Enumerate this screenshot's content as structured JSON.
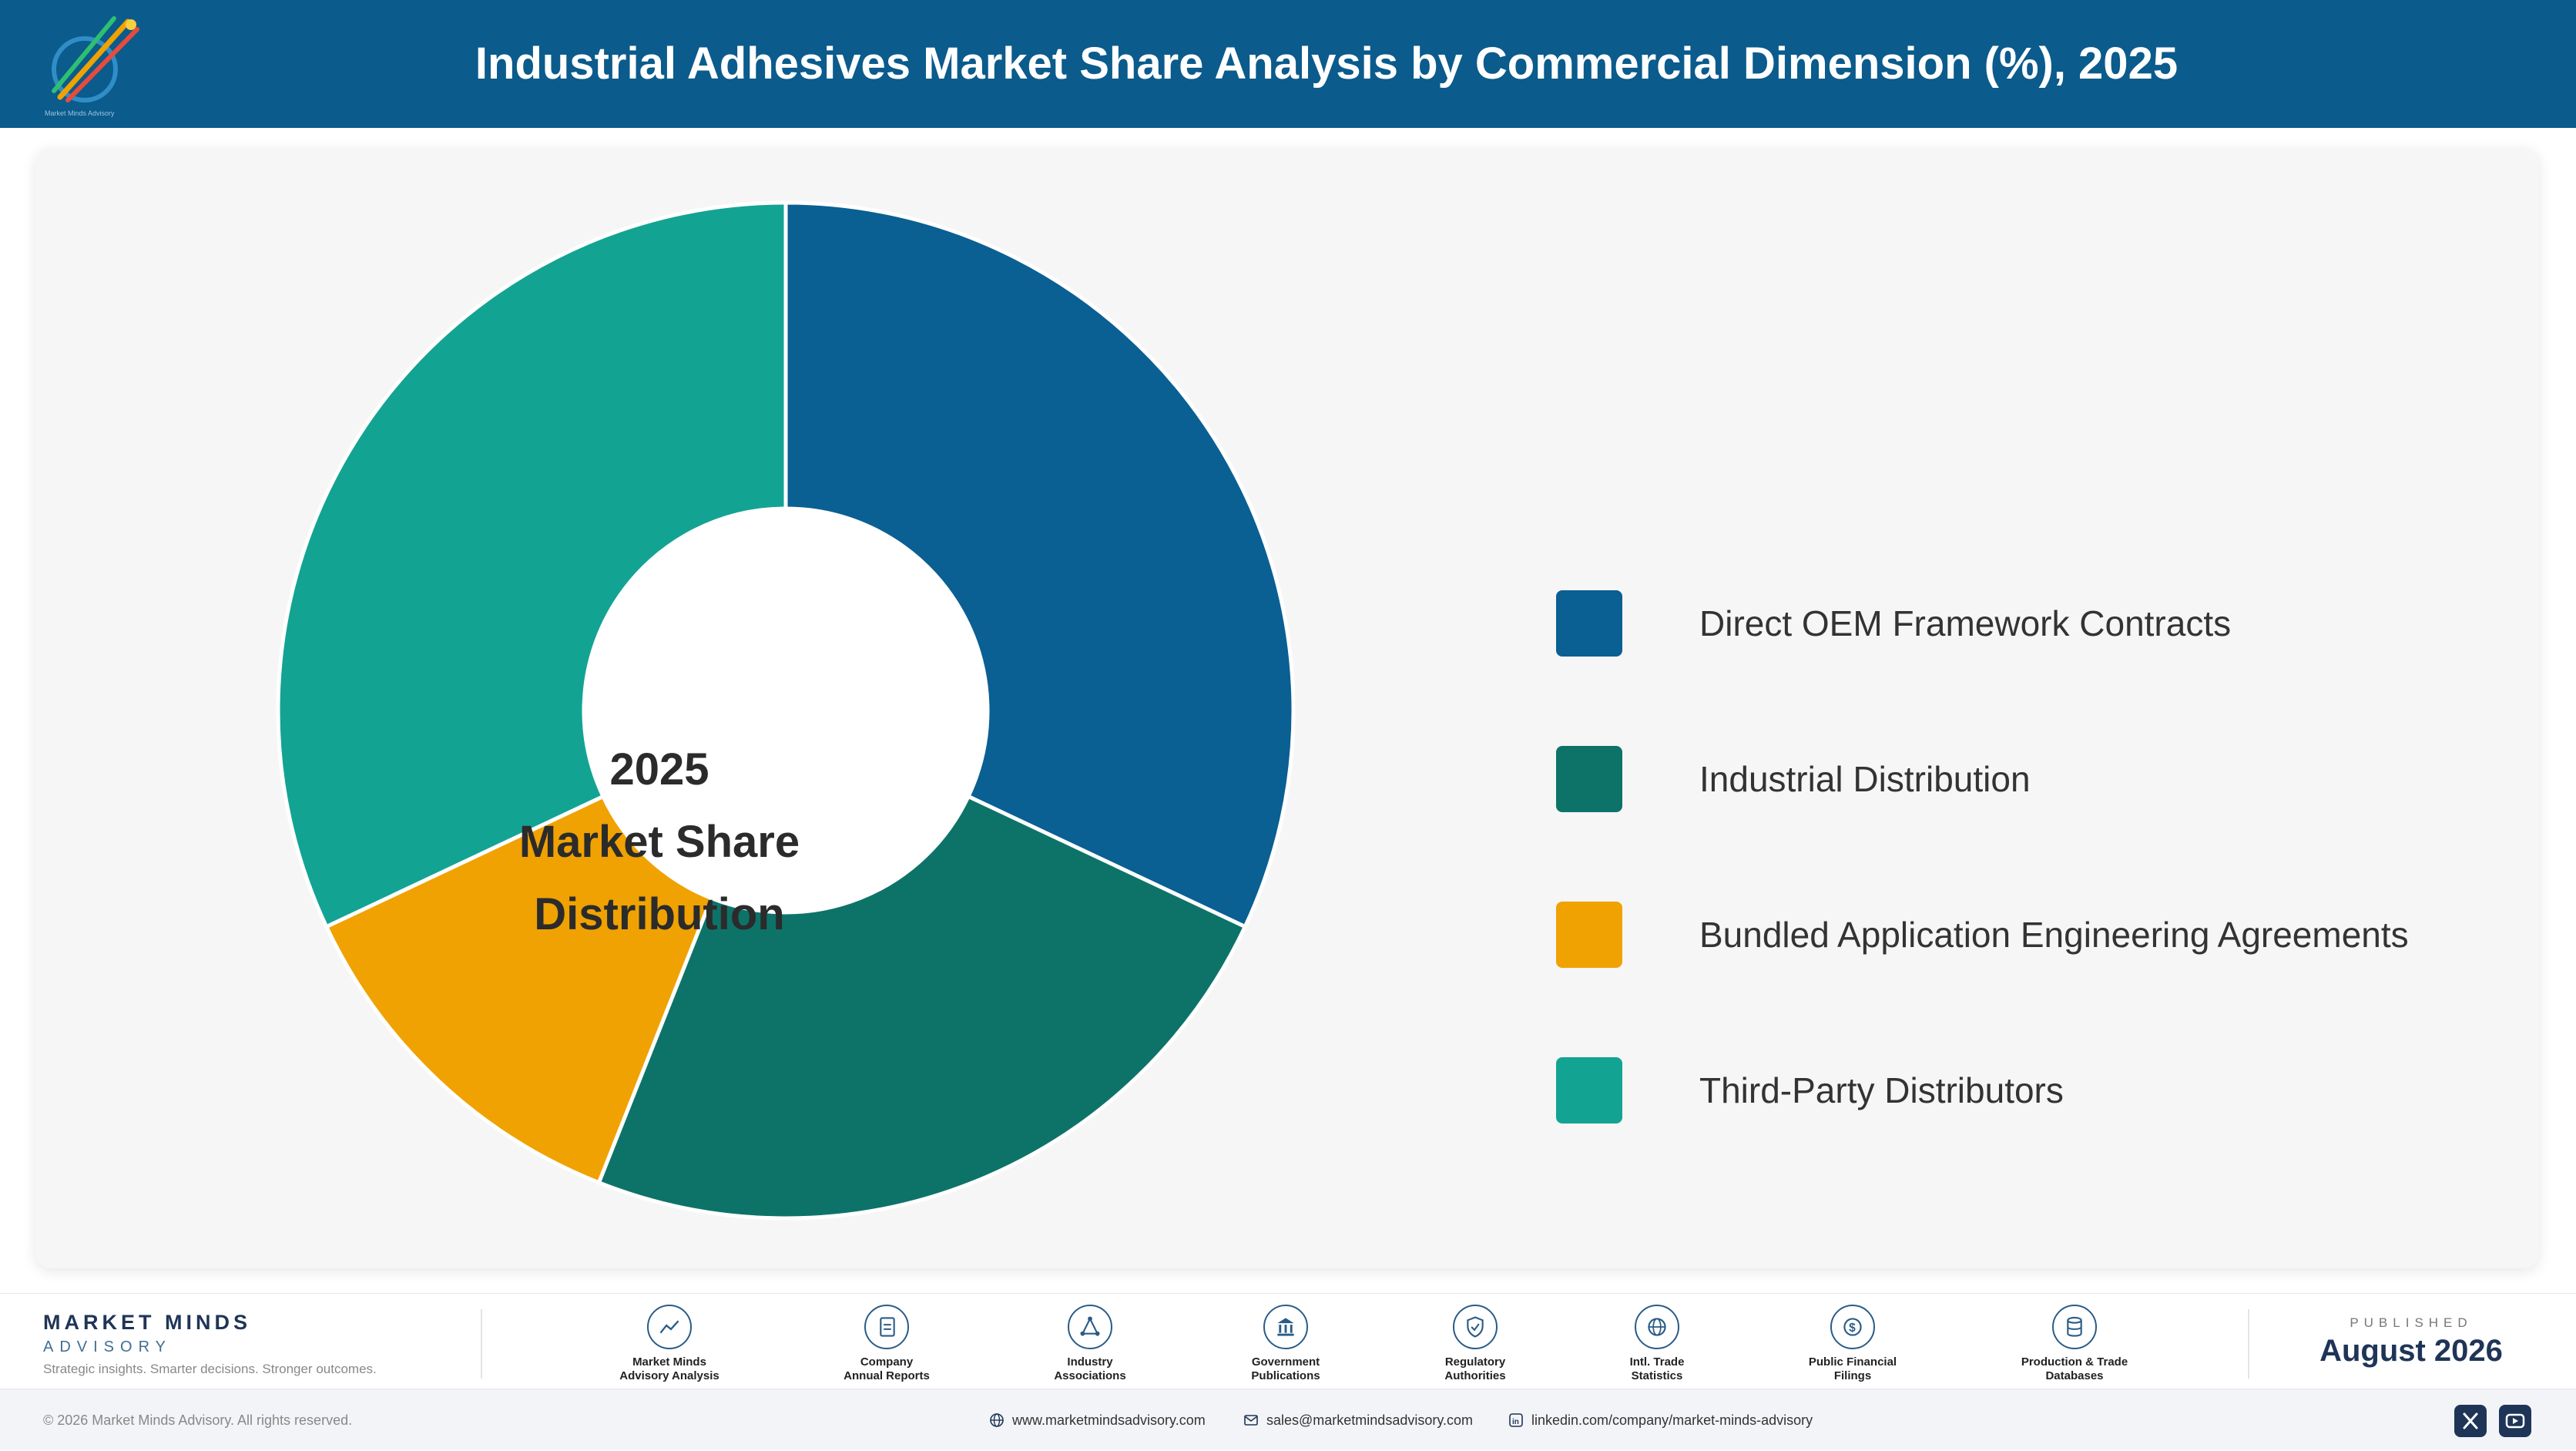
{
  "header": {
    "title": "Industrial Adhesives Market Share Analysis by Commercial Dimension (%), 2025",
    "logo_text": "Market Minds Advisory",
    "background": "#0b5b8c"
  },
  "chart_data": {
    "type": "pie",
    "donut": true,
    "center_label": [
      "2025",
      "Market Share",
      "Distribution"
    ],
    "categories": [
      "Direct OEM Framework Contracts",
      "Industrial Distribution",
      "Bundled Application Engineering Agreements",
      "Third-Party Distributors"
    ],
    "values": [
      32,
      24,
      12,
      32
    ],
    "colors": [
      "#0a5f93",
      "#0d7369",
      "#f0a202",
      "#13a393"
    ],
    "legend_position": "right",
    "data_labels": false
  },
  "footer": {
    "brand_name": "MARKET MINDS",
    "brand_sub": "ADVISORY",
    "tagline": "Strategic insights. Smarter decisions. Stronger outcomes.",
    "sources": [
      {
        "icon": "line-chart-icon",
        "label_1": "Market Minds",
        "label_2": "Advisory Analysis"
      },
      {
        "icon": "document-icon",
        "label_1": "Company",
        "label_2": "Annual Reports"
      },
      {
        "icon": "network-icon",
        "label_1": "Industry",
        "label_2": "Associations"
      },
      {
        "icon": "government-building-icon",
        "label_1": "Government",
        "label_2": "Publications"
      },
      {
        "icon": "shield-check-icon",
        "label_1": "Regulatory",
        "label_2": "Authorities"
      },
      {
        "icon": "globe-icon",
        "label_1": "Intl. Trade",
        "label_2": "Statistics"
      },
      {
        "icon": "dollar-coin-icon",
        "label_1": "Public Financial",
        "label_2": "Filings"
      },
      {
        "icon": "database-icon",
        "label_1": "Production & Trade",
        "label_2": "Databases"
      }
    ],
    "published_label": "PUBLISHED",
    "published_date": "August 2026"
  },
  "bottom_bar": {
    "copyright": "© 2026 Market Minds Advisory. All rights reserved.",
    "website": "www.marketmindsadvisory.com",
    "email": "sales@marketmindsadvisory.com",
    "linkedin": "linkedin.com/company/market-minds-advisory",
    "social": [
      "x-icon",
      "youtube-icon"
    ]
  }
}
